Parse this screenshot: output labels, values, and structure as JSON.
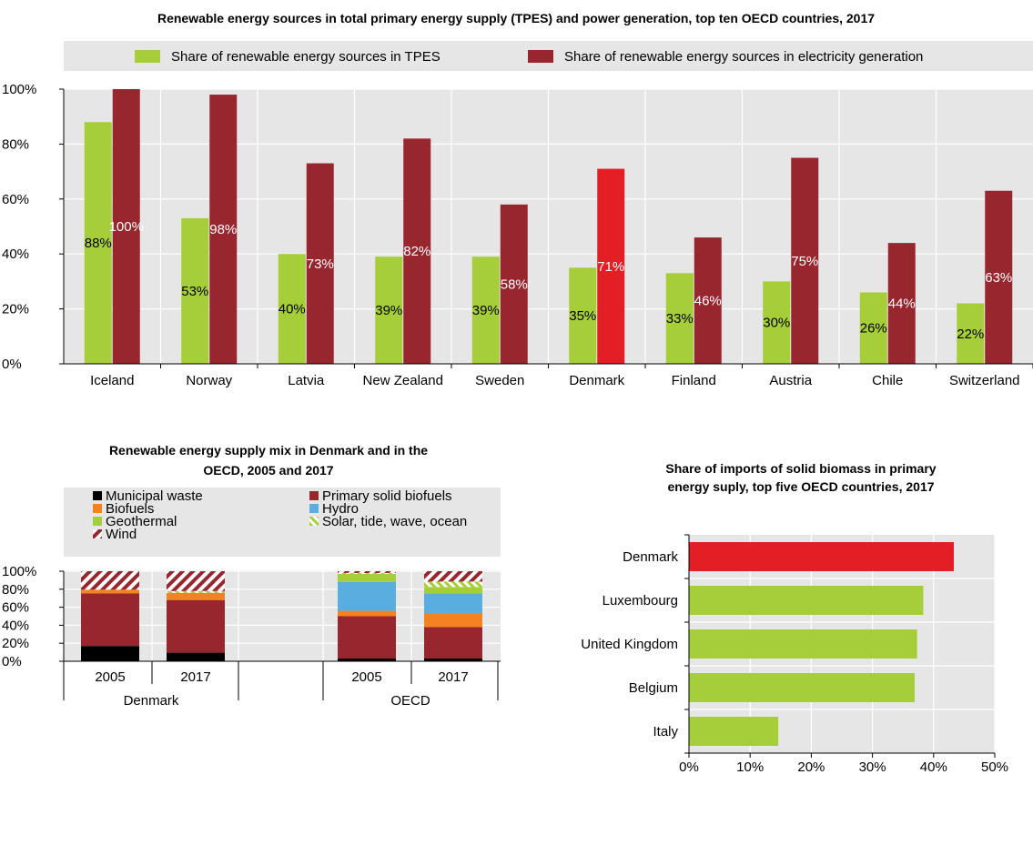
{
  "colors": {
    "green": "#a6ce39",
    "maroon": "#98262e",
    "red": "#e31e24",
    "black": "#000000",
    "orange": "#f58220",
    "blue": "#5aaddf",
    "panel_bg": "#e6e6e6",
    "legend_bg": "#e6e6e6"
  },
  "chart_data": [
    {
      "type": "bar",
      "title": "Renewable energy sources in total primary energy supply (TPES) and power generation, top ten OECD countries, 2017",
      "categories": [
        "Iceland",
        "Norway",
        "Latvia",
        "New Zealand",
        "Sweden",
        "Denmark",
        "Finland",
        "Austria",
        "Chile",
        "Switzerland"
      ],
      "series": [
        {
          "name": "Share of renewable energy sources in TPES",
          "values": [
            88,
            53,
            40,
            39,
            39,
            35,
            33,
            30,
            26,
            22
          ],
          "labels": [
            "88%",
            "53%",
            "40%",
            "39%",
            "39%",
            "35%",
            "33%",
            "30%",
            "26%",
            "22%"
          ]
        },
        {
          "name": "Share of renewable energy sources in electricity generation",
          "values": [
            100,
            98,
            73,
            82,
            58,
            71,
            46,
            75,
            44,
            63
          ],
          "labels": [
            "100%",
            "98%",
            "73%",
            "82%",
            "58%",
            "71%",
            "46%",
            "75%",
            "44%",
            "63%"
          ]
        }
      ],
      "highlight": "Denmark",
      "ylim": [
        0,
        100
      ],
      "yticks": [
        "0%",
        "20%",
        "40%",
        "60%",
        "80%",
        "100%"
      ],
      "legend_position": "top",
      "grid": true
    },
    {
      "type": "bar",
      "stacked": true,
      "title_lines": [
        "Renewable energy supply mix in Denmark and in the",
        "OECD, 2005 and 2017"
      ],
      "categories": [
        "2005",
        "2017",
        "2005",
        "2017"
      ],
      "groups": [
        "Denmark",
        "OECD"
      ],
      "series": [
        {
          "name": "Municipal waste",
          "values": [
            17,
            9.5,
            3,
            3
          ]
        },
        {
          "name": "Primary solid biofuels",
          "values": [
            58.5,
            58.5,
            47,
            35
          ]
        },
        {
          "name": "Biofuels",
          "values": [
            4,
            8,
            6,
            15.5
          ]
        },
        {
          "name": "Hydro",
          "values": [
            0,
            0,
            32,
            22
          ]
        },
        {
          "name": "Geothermal",
          "values": [
            0,
            0,
            9,
            7
          ]
        },
        {
          "name": "Solar, tide, wave, ocean",
          "values": [
            0,
            2,
            1,
            6
          ]
        },
        {
          "name": "Wind",
          "values": [
            20.5,
            22,
            2,
            11.5
          ]
        }
      ],
      "ylim": [
        0,
        100
      ],
      "yticks": [
        "0%",
        "20%",
        "40%",
        "60%",
        "80%",
        "100%"
      ],
      "legend_position": "top",
      "grid": true
    },
    {
      "type": "bar",
      "orientation": "horizontal",
      "title_lines": [
        "Share of imports of solid biomass in primary",
        "energy suply, top five OECD countries, 2017"
      ],
      "categories": [
        "Denmark",
        "Luxembourg",
        "United Kingdom",
        "Belgium",
        "Italy"
      ],
      "values": [
        43.3,
        38.3,
        37.3,
        36.9,
        14.6
      ],
      "highlight": "Denmark",
      "xlim": [
        0,
        50
      ],
      "xticks": [
        "0%",
        "10%",
        "20%",
        "30%",
        "40%",
        "50%"
      ],
      "grid": true
    }
  ]
}
